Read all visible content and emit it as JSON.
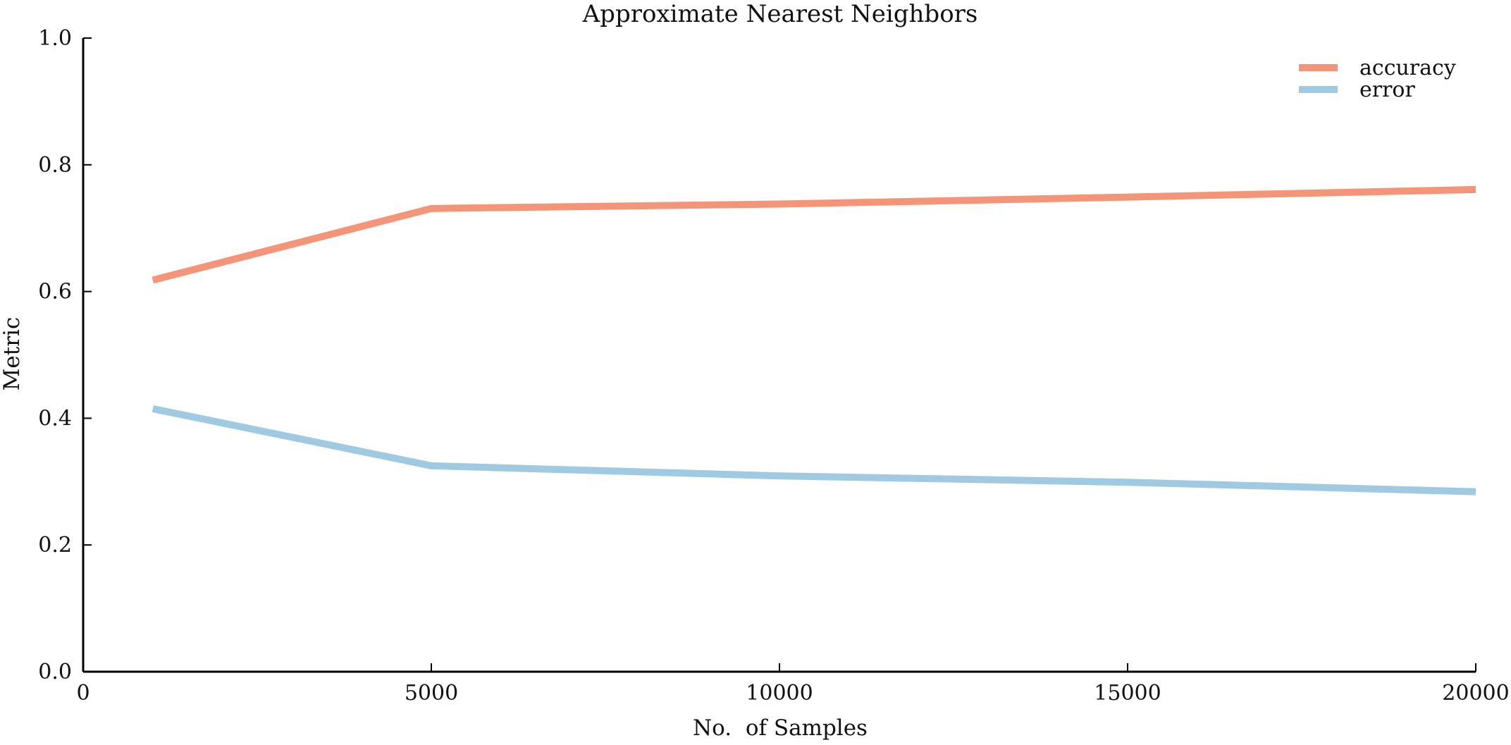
{
  "chart_data": {
    "type": "line",
    "title": "Approximate Nearest Neighbors",
    "xlabel": "No.  of Samples",
    "ylabel": "Metric",
    "xlim": [
      0,
      20000
    ],
    "ylim": [
      0.0,
      1.0
    ],
    "x_ticks": [
      0,
      5000,
      10000,
      15000,
      20000
    ],
    "y_ticks": [
      0.0,
      0.2,
      0.4,
      0.6,
      0.8,
      1.0
    ],
    "y_tick_labels": [
      "0.0",
      "0.2",
      "0.4",
      "0.6",
      "0.8",
      "1.0"
    ],
    "x": [
      1000,
      5000,
      10000,
      15000,
      20000
    ],
    "series": [
      {
        "name": "accuracy",
        "color": "#F4957A",
        "values": [
          0.618,
          0.731,
          0.738,
          0.749,
          0.761
        ]
      },
      {
        "name": "error",
        "color": "#9FCAE1",
        "values": [
          0.415,
          0.325,
          0.309,
          0.299,
          0.284
        ]
      }
    ],
    "grid": false,
    "legend_position": "top-right"
  }
}
